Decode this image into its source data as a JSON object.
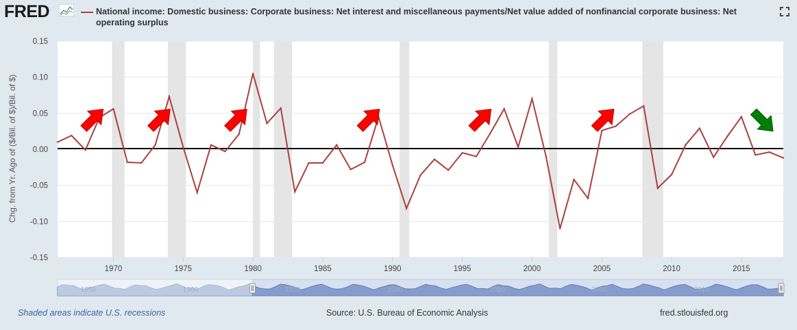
{
  "header": {
    "logo_text": "FRED",
    "logo_icon": "line-graph-icon",
    "series_title": "National income: Domestic business: Corporate business: Net interest and miscellaneous payments/Net value added of nonfinancial corporate business: Net operating surplus",
    "fullscreen_icon": "fullscreen-icon"
  },
  "footer": {
    "recession_note": "Shaded areas indicate U.S. recessions",
    "source": "Source: U.S. Bureau of Economic Analysis",
    "site": "fred.stlouisfed.org"
  },
  "colors": {
    "series": "#a9403c",
    "recession": "#e5e5e5",
    "zero_line": "#000000",
    "up_arrow": "#ff0000",
    "down_arrow": "#008000",
    "navigator_fill": "#8fa6cf"
  },
  "chart_data": {
    "type": "line",
    "title": "National income: Domestic business: Corporate business: Net interest and miscellaneous payments/Net value added of nonfinancial corporate business: Net operating surplus",
    "xlabel": "",
    "ylabel": "Chg. from Yr. Ago of ($/Bil. of $)/Bil. of $)",
    "xlim": [
      1966,
      2018
    ],
    "ylim": [
      -0.15,
      0.15
    ],
    "x_ticks": [
      "1970",
      "1975",
      "1980",
      "1985",
      "1990",
      "1995",
      "2000",
      "2005",
      "2010",
      "2015"
    ],
    "y_ticks": [
      "0.15",
      "0.10",
      "0.05",
      "0.00",
      "-0.05",
      "-0.10",
      "-0.15"
    ],
    "grid": true,
    "series": [
      {
        "x": [
          1966,
          1967,
          1968,
          1969,
          1970,
          1971,
          1972,
          1973,
          1974,
          1975,
          1976,
          1977,
          1978,
          1979,
          1980,
          1981,
          1982,
          1983,
          1984,
          1985,
          1986,
          1987,
          1988,
          1989,
          1990,
          1991,
          1992,
          1993,
          1994,
          1995,
          1996,
          1997,
          1998,
          1999,
          2000,
          2001,
          2002,
          2003,
          2004,
          2005,
          2006,
          2007,
          2008,
          2009,
          2010,
          2011,
          2012,
          2013,
          2014,
          2015,
          2016,
          2017,
          2018
        ],
        "values": [
          0.01,
          0.019,
          -0.001,
          0.044,
          0.056,
          -0.018,
          -0.019,
          0.006,
          0.073,
          0.003,
          -0.06,
          0.006,
          -0.003,
          0.021,
          0.105,
          0.036,
          0.057,
          -0.059,
          -0.019,
          -0.019,
          0.006,
          -0.028,
          -0.018,
          0.045,
          -0.022,
          -0.082,
          -0.036,
          -0.014,
          -0.029,
          -0.005,
          -0.01,
          0.022,
          0.056,
          0.003,
          0.07,
          -0.01,
          -0.11,
          -0.042,
          -0.068,
          0.026,
          0.032,
          0.049,
          0.06,
          -0.054,
          -0.035,
          0.006,
          0.029,
          -0.011,
          0.018,
          0.045,
          -0.008,
          -0.004,
          -0.012
        ]
      }
    ],
    "recessions": [
      [
        1969.9,
        1970.8
      ],
      [
        1973.9,
        1975.2
      ],
      [
        1980.0,
        1980.5
      ],
      [
        1981.5,
        1982.8
      ],
      [
        1990.5,
        1991.2
      ],
      [
        2001.2,
        2001.8
      ],
      [
        2007.9,
        2009.4
      ]
    ],
    "annotations": {
      "up_arrows_at": [
        1968.5,
        1973.3,
        1978.8,
        1988.3,
        1996.3,
        2005.1
      ],
      "down_arrows_at": [
        2016.5
      ]
    }
  },
  "navigator": {
    "tick_labels": [
      "1950",
      "1960",
      "1970",
      "1980",
      "1990",
      "2000",
      "2010"
    ],
    "selection": [
      1966,
      2018
    ],
    "handle_icon": "drag-handle-icon"
  }
}
